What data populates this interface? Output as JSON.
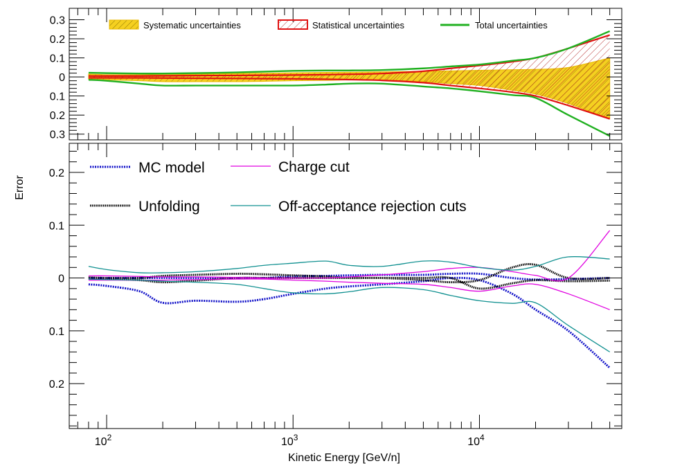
{
  "chart_data": [
    {
      "type": "area",
      "panel": "top",
      "ylim": [
        -0.33,
        0.36
      ],
      "xlim": [
        63,
        58000
      ],
      "x_scale": "log",
      "y_tick_values": [
        -0.3,
        -0.2,
        -0.1,
        0,
        0.1,
        0.2,
        0.3
      ],
      "y_tick_labels": [
        "0.3",
        "0.2",
        "0.1",
        "0",
        "0.1",
        "0.2",
        "0.3"
      ],
      "legend": {
        "systematic": "Systematic uncertainties",
        "statistical": "Statistical uncertainties",
        "total": "Total uncertainties"
      },
      "x": [
        80,
        100,
        150,
        200,
        300,
        500,
        700,
        1000,
        1500,
        2000,
        3000,
        5000,
        7000,
        10000,
        15000,
        20000,
        30000,
        50000
      ],
      "series": [
        {
          "name": "Systematic uncertainties (upper)",
          "values": [
            0.015,
            0.012,
            0.012,
            0.012,
            0.014,
            0.018,
            0.02,
            0.022,
            0.024,
            0.025,
            0.027,
            0.03,
            0.032,
            0.035,
            0.038,
            0.04,
            0.05,
            0.1
          ]
        },
        {
          "name": "Systematic uncertainties (lower)",
          "values": [
            -0.012,
            -0.015,
            -0.02,
            -0.025,
            -0.025,
            -0.025,
            -0.023,
            -0.02,
            -0.018,
            -0.016,
            -0.016,
            -0.025,
            -0.035,
            -0.045,
            -0.07,
            -0.09,
            -0.14,
            -0.22
          ]
        },
        {
          "name": "Statistical uncertainties (upper)",
          "values": [
            0.005,
            0.005,
            0.005,
            0.006,
            0.007,
            0.008,
            0.009,
            0.01,
            0.012,
            0.014,
            0.018,
            0.03,
            0.045,
            0.06,
            0.08,
            0.1,
            0.15,
            0.22
          ]
        },
        {
          "name": "Statistical uncertainties (lower)",
          "values": [
            -0.005,
            -0.005,
            -0.005,
            -0.006,
            -0.007,
            -0.008,
            -0.009,
            -0.01,
            -0.012,
            -0.014,
            -0.018,
            -0.03,
            -0.045,
            -0.06,
            -0.08,
            -0.1,
            -0.15,
            -0.22
          ]
        },
        {
          "name": "Total uncertainties (upper)",
          "values": [
            0.022,
            0.02,
            0.018,
            0.018,
            0.02,
            0.024,
            0.028,
            0.032,
            0.034,
            0.034,
            0.036,
            0.045,
            0.055,
            0.065,
            0.085,
            0.1,
            0.15,
            0.24
          ]
        },
        {
          "name": "Total uncertainties (lower)",
          "values": [
            -0.015,
            -0.02,
            -0.035,
            -0.045,
            -0.045,
            -0.045,
            -0.045,
            -0.045,
            -0.04,
            -0.035,
            -0.035,
            -0.05,
            -0.06,
            -0.075,
            -0.095,
            -0.11,
            -0.2,
            -0.31
          ]
        }
      ]
    },
    {
      "type": "line",
      "panel": "bottom",
      "ylabel": "Error",
      "xlabel": "Kinetic Energy [GeV/n]",
      "ylim": [
        -0.285,
        0.255
      ],
      "xlim": [
        63,
        58000
      ],
      "x_scale": "log",
      "x_tick_labels": [
        {
          "base": "10",
          "exp": "2"
        },
        {
          "base": "10",
          "exp": "3"
        },
        {
          "base": "10",
          "exp": "4"
        }
      ],
      "y_tick_values": [
        -0.2,
        -0.1,
        0,
        0.1,
        0.2
      ],
      "y_tick_labels": [
        "0.2",
        "0.1",
        "0",
        "0.1",
        "0.2"
      ],
      "legend": {
        "mc": "MC model",
        "unfolding": "Unfolding",
        "charge": "Charge cut",
        "offacc": "Off-acceptance rejection cuts"
      },
      "x": [
        80,
        100,
        150,
        200,
        300,
        500,
        700,
        1000,
        1500,
        2000,
        3000,
        5000,
        7000,
        10000,
        15000,
        20000,
        30000,
        50000
      ],
      "series": [
        {
          "name": "MC model (upper)",
          "color": "#1010c8",
          "values": [
            0.0,
            0.0,
            0.0,
            0.0,
            0.0,
            0.0,
            0.0,
            0.003,
            0.004,
            0.005,
            0.006,
            0.006,
            0.008,
            0.008,
            0.0,
            -0.003,
            -0.002,
            0.0
          ]
        },
        {
          "name": "MC model (lower)",
          "color": "#1010c8",
          "values": [
            -0.012,
            -0.015,
            -0.025,
            -0.047,
            -0.043,
            -0.045,
            -0.04,
            -0.03,
            -0.02,
            -0.016,
            -0.012,
            -0.006,
            0.0,
            -0.004,
            -0.03,
            -0.06,
            -0.1,
            -0.17
          ]
        },
        {
          "name": "Unfolding (upper)",
          "color": "#000000",
          "values": [
            0.001,
            0.0,
            0.0,
            0.004,
            0.006,
            0.008,
            0.007,
            0.005,
            0.003,
            0.0,
            0.0,
            -0.004,
            -0.008,
            -0.004,
            0.02,
            0.025,
            0.0,
            0.0
          ]
        },
        {
          "name": "Unfolding (lower)",
          "color": "#000000",
          "values": [
            -0.001,
            -0.002,
            -0.004,
            -0.008,
            -0.005,
            0.0,
            0.0,
            0.0,
            0.0,
            0.0,
            0.0,
            0.0,
            0.0,
            -0.02,
            -0.01,
            -0.004,
            -0.006,
            -0.005
          ]
        },
        {
          "name": "Charge cut (upper)",
          "color": "#e000e0",
          "values": [
            0.004,
            0.004,
            0.003,
            0.002,
            0.002,
            0.001,
            0.0,
            0.0,
            0.0,
            0.002,
            0.006,
            0.012,
            0.018,
            0.02,
            0.012,
            0.005,
            0.0,
            0.09
          ]
        },
        {
          "name": "Charge cut (lower)",
          "color": "#e000e0",
          "values": [
            -0.004,
            -0.004,
            -0.004,
            -0.004,
            -0.003,
            -0.002,
            -0.002,
            -0.004,
            -0.006,
            -0.008,
            -0.01,
            -0.012,
            -0.018,
            -0.025,
            -0.015,
            -0.012,
            -0.03,
            -0.06
          ]
        },
        {
          "name": "Off-acceptance rejection cuts (upper)",
          "color": "#109090",
          "values": [
            0.022,
            0.016,
            0.01,
            0.01,
            0.012,
            0.018,
            0.024,
            0.028,
            0.032,
            0.024,
            0.022,
            0.032,
            0.03,
            0.02,
            0.015,
            0.022,
            0.04,
            0.036
          ]
        },
        {
          "name": "Off-acceptance rejection cuts (lower)",
          "color": "#109090",
          "values": [
            -0.002,
            -0.003,
            -0.004,
            -0.006,
            -0.008,
            -0.012,
            -0.02,
            -0.028,
            -0.03,
            -0.026,
            -0.018,
            -0.022,
            -0.033,
            -0.043,
            -0.048,
            -0.047,
            -0.09,
            -0.14
          ]
        }
      ]
    }
  ]
}
